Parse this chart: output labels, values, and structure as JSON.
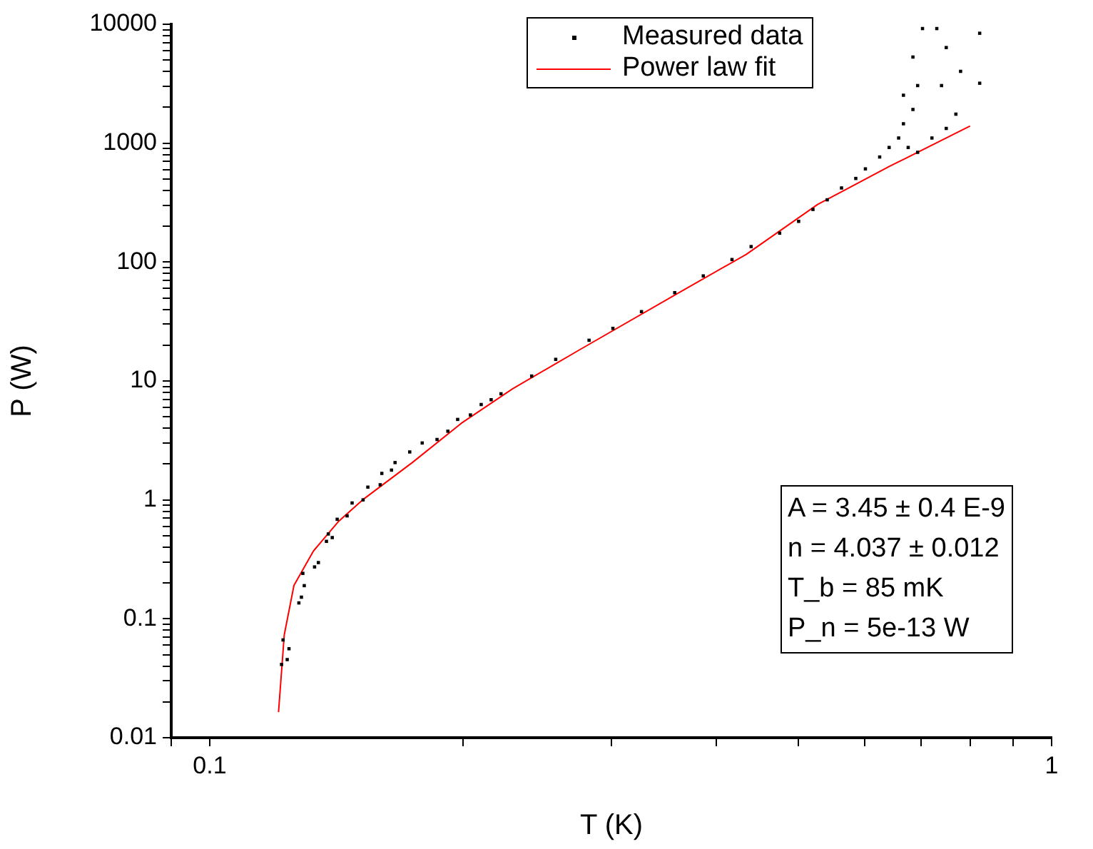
{
  "chart_data": {
    "type": "scatter",
    "xlabel": "T (K)",
    "ylabel": "P (W)",
    "log": "xy",
    "grid": false,
    "legend": "top",
    "xlim": [
      0.09,
      1
    ],
    "ylim": [
      0.01,
      10000
    ],
    "xticks": [
      {
        "value": 0.09,
        "label": null
      },
      0.1,
      {
        "value": 0.2,
        "label": null
      },
      {
        "value": 0.3,
        "label": null
      },
      {
        "value": 0.4,
        "label": null
      },
      {
        "value": 0.5,
        "label": null
      },
      {
        "value": 0.6,
        "label": null
      },
      {
        "value": 0.7,
        "label": null
      },
      {
        "value": 0.8,
        "label": null
      },
      {
        "value": 0.9,
        "label": null
      },
      1
    ],
    "yticks": [
      0.01,
      {
        "value": 0.02,
        "label": null
      },
      {
        "value": 0.03,
        "label": null
      },
      {
        "value": 0.04,
        "label": null
      },
      {
        "value": 0.05,
        "label": null
      },
      {
        "value": 0.06,
        "label": null
      },
      {
        "value": 0.07,
        "label": null
      },
      {
        "value": 0.08,
        "label": null
      },
      {
        "value": 0.09,
        "label": null
      },
      0.1,
      {
        "value": 0.2,
        "label": null
      },
      {
        "value": 0.3,
        "label": null
      },
      {
        "value": 0.4,
        "label": null
      },
      {
        "value": 0.5,
        "label": null
      },
      {
        "value": 0.6,
        "label": null
      },
      {
        "value": 0.7,
        "label": null
      },
      {
        "value": 0.8,
        "label": null
      },
      {
        "value": 0.9,
        "label": null
      },
      1,
      {
        "value": 2,
        "label": null
      },
      {
        "value": 3,
        "label": null
      },
      {
        "value": 4,
        "label": null
      },
      {
        "value": 5,
        "label": null
      },
      {
        "value": 6,
        "label": null
      },
      {
        "value": 7,
        "label": null
      },
      {
        "value": 8,
        "label": null
      },
      {
        "value": 9,
        "label": null
      },
      10,
      {
        "value": 20,
        "label": null
      },
      {
        "value": 30,
        "label": null
      },
      {
        "value": 40,
        "label": null
      },
      {
        "value": 50,
        "label": null
      },
      {
        "value": 60,
        "label": null
      },
      {
        "value": 70,
        "label": null
      },
      {
        "value": 80,
        "label": null
      },
      {
        "value": 90,
        "label": null
      },
      100,
      {
        "value": 200,
        "label": null
      },
      {
        "value": 300,
        "label": null
      },
      {
        "value": 400,
        "label": null
      },
      {
        "value": 500,
        "label": null
      },
      {
        "value": 600,
        "label": null
      },
      {
        "value": 700,
        "label": null
      },
      {
        "value": 800,
        "label": null
      },
      {
        "value": 900,
        "label": null
      },
      1000,
      {
        "value": 2000,
        "label": null
      },
      {
        "value": 3000,
        "label": null
      },
      {
        "value": 4000,
        "label": null
      },
      {
        "value": 5000,
        "label": null
      },
      {
        "value": 6000,
        "label": null
      },
      {
        "value": 7000,
        "label": null
      },
      {
        "value": 8000,
        "label": null
      },
      {
        "value": 9000,
        "label": null
      },
      10000
    ],
    "annotations": [
      "A = 3.45 ± 0.4 E-9",
      "n = 4.037 ± 0.012",
      "T_b = 85 mK",
      "P_n = 5e-13 W"
    ],
    "series": [
      {
        "name": "Measured data",
        "marker": "square",
        "color": "#000000",
        "x": [
          0.1217,
          0.1222,
          0.1236,
          0.1242,
          0.1276,
          0.1285,
          0.1295,
          0.129,
          0.1332,
          0.1346,
          0.1376,
          0.1383,
          0.1398,
          0.1417,
          0.1456,
          0.1476,
          0.1521,
          0.1541,
          0.1594,
          0.1601,
          0.1644,
          0.166,
          0.1728,
          0.1788,
          0.1862,
          0.1918,
          0.197,
          0.204,
          0.2101,
          0.2159,
          0.2218,
          0.2412,
          0.2576,
          0.2822,
          0.3012,
          0.3257,
          0.3567,
          0.3857,
          0.4172,
          0.4396,
          0.4753,
          0.5006,
          0.5206,
          0.5413,
          0.5629,
          0.5853,
          0.6009,
          0.6248,
          0.6412,
          0.6581,
          0.6668,
          0.6843,
          0.6668,
          0.6932,
          0.6843,
          0.7025,
          0.7305,
          0.7496,
          0.74,
          0.7496,
          0.7208,
          0.7796,
          0.8214,
          0.8214,
          0.7696,
          0.6932,
          0.6755
        ],
        "values": [
          0.0413,
          0.0664,
          0.0454,
          0.056,
          0.136,
          0.152,
          0.19,
          0.241,
          0.273,
          0.297,
          0.448,
          0.517,
          0.482,
          0.687,
          0.734,
          0.942,
          1.0,
          1.28,
          1.34,
          1.67,
          1.78,
          2.06,
          2.53,
          3.01,
          3.22,
          3.78,
          4.75,
          5.18,
          6.34,
          6.96,
          7.8,
          11,
          15.2,
          22,
          27.7,
          38.3,
          55.3,
          76.5,
          105,
          135,
          175,
          220,
          277,
          334,
          420,
          505,
          608,
          765,
          920,
          1105,
          1456,
          1920,
          2530,
          3050,
          5300,
          9200,
          9200,
          6370,
          3050,
          1330,
          1105,
          4018,
          3192,
          8400,
          1754,
          838,
          920
        ]
      },
      {
        "name": "Power law fit",
        "type": "line",
        "marker": "none",
        "line_style": "solid",
        "color": "#ff0000",
        "x": [
          0.1207,
          0.1226,
          0.1259,
          0.1328,
          0.1421,
          0.1519,
          0.174,
          0.1989,
          0.229,
          0.275,
          0.3567,
          0.4337,
          0.5272,
          0.6412,
          0.8001
        ],
        "values": [
          0.0164,
          0.0731,
          0.191,
          0.372,
          0.655,
          1.0,
          2.06,
          4.4,
          8.6,
          18.3,
          52.8,
          116,
          305,
          636,
          1393
        ]
      }
    ]
  }
}
